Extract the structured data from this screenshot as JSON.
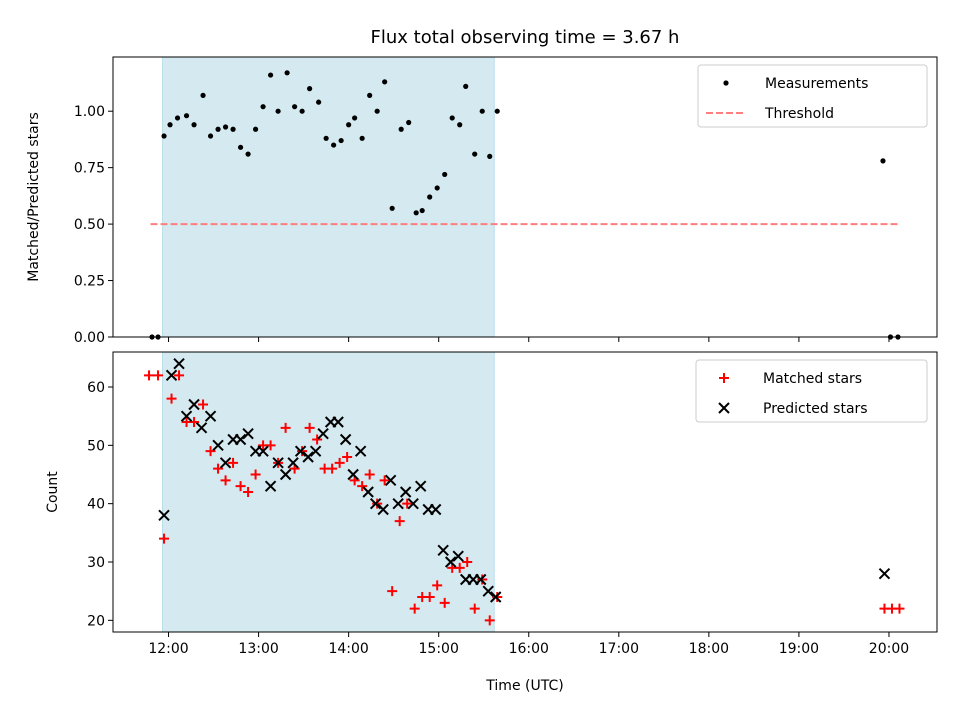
{
  "chart_data": [
    {
      "type": "scatter",
      "title": "Flux total observing time = 3.67 h",
      "xlabel": "",
      "ylabel": "Matched/Predicted stars",
      "xlim": [
        "11:23",
        "20:32"
      ],
      "ylim": [
        0,
        1.24
      ],
      "yticks": [
        "0.00",
        "0.25",
        "0.50",
        "0.75",
        "1.00"
      ],
      "ytick_values": [
        0,
        0.25,
        0.5,
        0.75,
        1.0
      ],
      "shaded_span": [
        "11:56",
        "15:37"
      ],
      "shaded_color": "#d4eaf0",
      "legend": {
        "position": "top-right",
        "entries": [
          "Measurements",
          "Threshold"
        ]
      },
      "threshold": {
        "name": "Threshold",
        "value": 0.5,
        "x_range": [
          "11:48",
          "20:07"
        ],
        "color": "#ff7f7f"
      },
      "series": [
        {
          "name": "Measurements",
          "color": "#000000",
          "marker": "dot",
          "points": [
            [
              "11:49",
              0.0
            ],
            [
              "11:53",
              0.0
            ],
            [
              "11:57",
              0.89
            ],
            [
              "12:01",
              0.94
            ],
            [
              "12:06",
              0.97
            ],
            [
              "12:12",
              0.98
            ],
            [
              "12:17",
              0.94
            ],
            [
              "12:23",
              1.07
            ],
            [
              "12:28",
              0.89
            ],
            [
              "12:33",
              0.92
            ],
            [
              "12:38",
              0.93
            ],
            [
              "12:43",
              0.92
            ],
            [
              "12:48",
              0.84
            ],
            [
              "12:53",
              0.81
            ],
            [
              "12:58",
              0.92
            ],
            [
              "13:03",
              1.02
            ],
            [
              "13:08",
              1.16
            ],
            [
              "13:13",
              1.0
            ],
            [
              "13:19",
              1.17
            ],
            [
              "13:24",
              1.02
            ],
            [
              "13:29",
              1.0
            ],
            [
              "13:34",
              1.1
            ],
            [
              "13:40",
              1.04
            ],
            [
              "13:45",
              0.88
            ],
            [
              "13:50",
              0.85
            ],
            [
              "13:55",
              0.87
            ],
            [
              "14:00",
              0.94
            ],
            [
              "14:04",
              0.97
            ],
            [
              "14:09",
              0.88
            ],
            [
              "14:14",
              1.07
            ],
            [
              "14:19",
              1.0
            ],
            [
              "14:24",
              1.13
            ],
            [
              "14:29",
              0.57
            ],
            [
              "14:35",
              0.92
            ],
            [
              "14:40",
              0.95
            ],
            [
              "14:45",
              0.55
            ],
            [
              "14:49",
              0.56
            ],
            [
              "14:54",
              0.62
            ],
            [
              "14:59",
              0.66
            ],
            [
              "15:04",
              0.72
            ],
            [
              "15:09",
              0.97
            ],
            [
              "15:14",
              0.94
            ],
            [
              "15:18",
              1.11
            ],
            [
              "15:24",
              0.81
            ],
            [
              "15:29",
              1.0
            ],
            [
              "15:34",
              0.8
            ],
            [
              "15:39",
              1.0
            ],
            [
              "19:56",
              0.78
            ],
            [
              "20:01",
              0.0
            ],
            [
              "20:06",
              0.0
            ]
          ]
        }
      ]
    },
    {
      "type": "scatter",
      "title": "",
      "xlabel": "Time (UTC)",
      "ylabel": "Count",
      "xlim": [
        "11:23",
        "20:32"
      ],
      "ylim": [
        18,
        66
      ],
      "yticks": [
        "20",
        "30",
        "40",
        "50",
        "60"
      ],
      "ytick_values": [
        20,
        30,
        40,
        50,
        60
      ],
      "xticks": [
        "12:00",
        "13:00",
        "14:00",
        "15:00",
        "16:00",
        "17:00",
        "18:00",
        "19:00",
        "20:00"
      ],
      "shaded_span": [
        "11:56",
        "15:37"
      ],
      "shaded_color": "#d4eaf0",
      "legend": {
        "position": "top-right",
        "entries": [
          "Matched stars",
          "Predicted stars"
        ]
      },
      "series": [
        {
          "name": "Matched stars",
          "color": "#ff0000",
          "marker": "plus",
          "points": [
            [
              "11:47",
              62
            ],
            [
              "11:53",
              62
            ],
            [
              "11:57",
              34
            ],
            [
              "12:02",
              58
            ],
            [
              "12:07",
              62
            ],
            [
              "12:12",
              54
            ],
            [
              "12:17",
              54
            ],
            [
              "12:23",
              57
            ],
            [
              "12:28",
              49
            ],
            [
              "12:33",
              46
            ],
            [
              "12:38",
              44
            ],
            [
              "12:43",
              47
            ],
            [
              "12:48",
              43
            ],
            [
              "12:53",
              42
            ],
            [
              "12:58",
              45
            ],
            [
              "13:03",
              50
            ],
            [
              "13:08",
              50
            ],
            [
              "13:13",
              47
            ],
            [
              "13:18",
              53
            ],
            [
              "13:24",
              46
            ],
            [
              "13:29",
              49
            ],
            [
              "13:34",
              53
            ],
            [
              "13:39",
              51
            ],
            [
              "13:44",
              46
            ],
            [
              "13:49",
              46
            ],
            [
              "13:54",
              47
            ],
            [
              "13:59",
              48
            ],
            [
              "14:04",
              44
            ],
            [
              "14:09",
              43
            ],
            [
              "14:14",
              45
            ],
            [
              "14:19",
              40
            ],
            [
              "14:24",
              44
            ],
            [
              "14:29",
              25
            ],
            [
              "14:34",
              37
            ],
            [
              "14:39",
              40
            ],
            [
              "14:44",
              22
            ],
            [
              "14:49",
              24
            ],
            [
              "14:54",
              24
            ],
            [
              "14:59",
              26
            ],
            [
              "15:04",
              23
            ],
            [
              "15:09",
              29
            ],
            [
              "15:14",
              29
            ],
            [
              "15:19",
              30
            ],
            [
              "15:24",
              22
            ],
            [
              "15:29",
              27
            ],
            [
              "15:34",
              20
            ],
            [
              "15:39",
              24
            ],
            [
              "19:57",
              22
            ],
            [
              "20:02",
              22
            ],
            [
              "20:07",
              22
            ]
          ]
        },
        {
          "name": "Predicted stars",
          "color": "#000000",
          "marker": "x",
          "points": [
            [
              "11:57",
              38
            ],
            [
              "12:02",
              62
            ],
            [
              "12:07",
              64
            ],
            [
              "12:12",
              55
            ],
            [
              "12:17",
              57
            ],
            [
              "12:22",
              53
            ],
            [
              "12:28",
              55
            ],
            [
              "12:33",
              50
            ],
            [
              "12:38",
              47
            ],
            [
              "12:43",
              51
            ],
            [
              "12:48",
              51
            ],
            [
              "12:53",
              52
            ],
            [
              "12:58",
              49
            ],
            [
              "13:03",
              49
            ],
            [
              "13:08",
              43
            ],
            [
              "13:13",
              47
            ],
            [
              "13:18",
              45
            ],
            [
              "13:23",
              47
            ],
            [
              "13:28",
              49
            ],
            [
              "13:33",
              48
            ],
            [
              "13:38",
              49
            ],
            [
              "13:43",
              52
            ],
            [
              "13:48",
              54
            ],
            [
              "13:53",
              54
            ],
            [
              "13:58",
              51
            ],
            [
              "14:03",
              45
            ],
            [
              "14:08",
              49
            ],
            [
              "14:13",
              42
            ],
            [
              "14:18",
              40
            ],
            [
              "14:23",
              39
            ],
            [
              "14:28",
              44
            ],
            [
              "14:33",
              40
            ],
            [
              "14:38",
              42
            ],
            [
              "14:43",
              40
            ],
            [
              "14:48",
              43
            ],
            [
              "14:53",
              39
            ],
            [
              "14:58",
              39
            ],
            [
              "15:03",
              32
            ],
            [
              "15:08",
              30
            ],
            [
              "15:13",
              31
            ],
            [
              "15:18",
              27
            ],
            [
              "15:23",
              27
            ],
            [
              "15:28",
              27
            ],
            [
              "15:33",
              25
            ],
            [
              "15:38",
              24
            ],
            [
              "19:57",
              28
            ]
          ]
        }
      ]
    }
  ]
}
